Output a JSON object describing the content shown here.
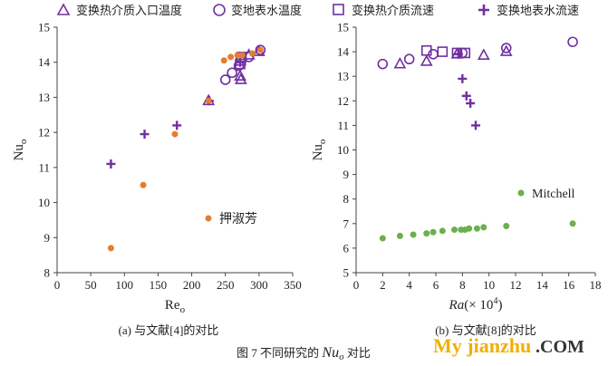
{
  "legend": [
    {
      "symbol": "triangle",
      "label": "变换热介质入口温度"
    },
    {
      "symbol": "circle",
      "label": "变地表水温度"
    },
    {
      "symbol": "square",
      "label": "变换热介质流速"
    },
    {
      "symbol": "plus",
      "label": "变换地表水流速"
    }
  ],
  "colors": {
    "purple": "#7030a0",
    "orange": "#e47d33",
    "green": "#6ab04c",
    "axis": "#444444"
  },
  "figure_caption": {
    "prefix": "图 7  不同研究的 ",
    "symbol": "Nu",
    "sub": "o",
    "suffix": " 对比"
  },
  "watermark": {
    "brand": "My jianzhu",
    "suffix": ".COM"
  },
  "chart_data": [
    {
      "type": "scatter",
      "caption": "(a)  与文献[4]的对比",
      "title": "",
      "ylabel": "Nu",
      "ylabel_sub": "o",
      "xlabel": "Re",
      "xlabel_sub": "o",
      "xlim": [
        0,
        350
      ],
      "ylim": [
        8,
        15
      ],
      "xticks": [
        0,
        50,
        100,
        150,
        200,
        250,
        300,
        350
      ],
      "yticks": [
        8,
        9,
        10,
        11,
        12,
        13,
        14,
        15
      ],
      "grid": false,
      "annotation": {
        "text": "押淑芳"
      },
      "series": [
        {
          "symbol": "triangle",
          "color": "#7030a0",
          "points": [
            [
              225,
              12.9
            ],
            [
              272,
              13.6
            ],
            [
              273,
              13.5
            ],
            [
              285,
              14.2
            ],
            [
              300,
              14.3
            ]
          ]
        },
        {
          "symbol": "circle",
          "color": "#7030a0",
          "points": [
            [
              250,
              13.5
            ],
            [
              260,
              13.7
            ],
            [
              270,
              13.9
            ],
            [
              285,
              14.15
            ],
            [
              302,
              14.35
            ]
          ]
        },
        {
          "symbol": "square",
          "color": "#7030a0",
          "points": [
            [
              272,
              13.95
            ],
            [
              273,
              14.05
            ],
            [
              274,
              14.15
            ]
          ]
        },
        {
          "symbol": "plus",
          "color": "#7030a0",
          "points": [
            [
              80,
              11.1
            ],
            [
              130,
              11.95
            ],
            [
              178,
              12.2
            ],
            [
              226,
              12.9
            ],
            [
              272,
              14.0
            ]
          ]
        },
        {
          "symbol": "dot",
          "color": "#e47d33",
          "name": "押淑芳",
          "points": [
            [
              80,
              8.7
            ],
            [
              128,
              10.5
            ],
            [
              175,
              11.95
            ],
            [
              225,
              12.9
            ],
            [
              248,
              14.05
            ],
            [
              258,
              14.15
            ],
            [
              268,
              14.2
            ],
            [
              275,
              14.2
            ],
            [
              290,
              14.25
            ],
            [
              302,
              14.35
            ]
          ]
        }
      ]
    },
    {
      "type": "scatter",
      "caption": "(b)  与文献[8]的对比",
      "title": "",
      "ylabel": "Nu",
      "ylabel_sub": "o",
      "xlabel": "Ra(× 10",
      "xlabel_sup": "4",
      "xlabel_end": ")",
      "xlim": [
        0,
        18
      ],
      "ylim": [
        5,
        15
      ],
      "xticks": [
        0,
        2,
        4,
        6,
        8,
        10,
        12,
        14,
        16,
        18
      ],
      "yticks": [
        5,
        6,
        7,
        8,
        9,
        10,
        11,
        12,
        13,
        14,
        15
      ],
      "grid": false,
      "annotation": {
        "text": "Mitchell"
      },
      "series": [
        {
          "symbol": "triangle",
          "color": "#7030a0",
          "points": [
            [
              3.3,
              13.5
            ],
            [
              5.3,
              13.6
            ],
            [
              7.6,
              13.9
            ],
            [
              9.6,
              13.85
            ],
            [
              11.3,
              14.0
            ]
          ]
        },
        {
          "symbol": "circle",
          "color": "#7030a0",
          "points": [
            [
              2.0,
              13.5
            ],
            [
              4.0,
              13.7
            ],
            [
              5.8,
              13.9
            ],
            [
              8.0,
              13.95
            ],
            [
              11.3,
              14.15
            ],
            [
              16.3,
              14.4
            ]
          ]
        },
        {
          "symbol": "square",
          "color": "#7030a0",
          "points": [
            [
              5.3,
              14.05
            ],
            [
              6.5,
              14.0
            ],
            [
              7.6,
              13.95
            ],
            [
              8.2,
              13.95
            ]
          ]
        },
        {
          "symbol": "plus",
          "color": "#7030a0",
          "points": [
            [
              7.7,
              13.9
            ],
            [
              8.0,
              12.9
            ],
            [
              8.3,
              12.2
            ],
            [
              8.6,
              11.9
            ],
            [
              9.0,
              11.0
            ]
          ]
        },
        {
          "symbol": "dot",
          "color": "#6ab04c",
          "name": "Mitchell",
          "points": [
            [
              2.0,
              6.4
            ],
            [
              3.3,
              6.5
            ],
            [
              4.3,
              6.55
            ],
            [
              5.3,
              6.6
            ],
            [
              5.8,
              6.65
            ],
            [
              6.5,
              6.7
            ],
            [
              7.4,
              6.75
            ],
            [
              7.9,
              6.75
            ],
            [
              8.2,
              6.75
            ],
            [
              8.5,
              6.8
            ],
            [
              9.1,
              6.8
            ],
            [
              9.6,
              6.85
            ],
            [
              11.3,
              6.9
            ],
            [
              16.3,
              7.0
            ]
          ]
        }
      ]
    }
  ]
}
